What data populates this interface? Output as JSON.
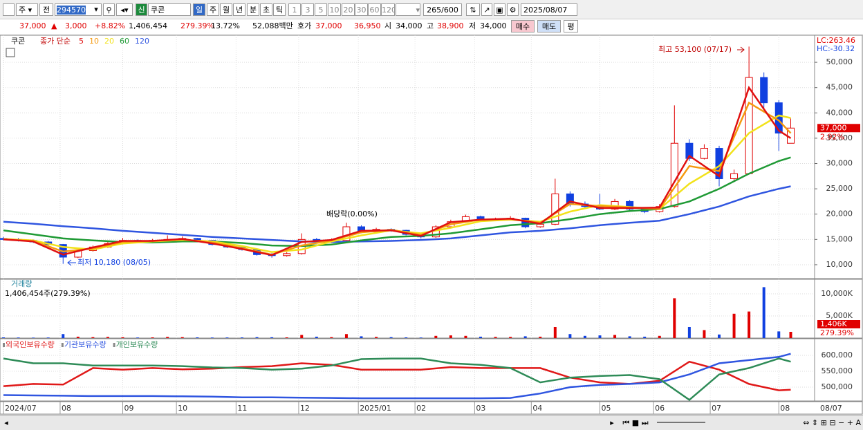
{
  "toolbar": {
    "market": "주",
    "prev": "전",
    "code": "294570",
    "flag": "신",
    "name": "쿠콘",
    "periods": [
      "일",
      "주",
      "월",
      "년",
      "분",
      "초",
      "틱"
    ],
    "intervals": [
      "1",
      "3",
      "5",
      "10",
      "20",
      "30",
      "60",
      "120"
    ],
    "count": "265",
    "total": "/600",
    "date": "2025/08/07"
  },
  "quote": {
    "price": "37,000",
    "arrow": "▲",
    "change": "3,000",
    "change_pct": "+8.82%",
    "volume": "1,406,454",
    "volume_ratio": "279.39%",
    "turnover": "13.72%",
    "amount": "52,088백만",
    "ask_label": "호가",
    "ask": "37,000",
    "bid": "36,950",
    "open_label": "시",
    "open": "34,000",
    "high_label": "고",
    "high": "38,900",
    "low_label": "저",
    "low": "34,000",
    "buy": "매수",
    "sell": "매도",
    "avg": "평"
  },
  "price_chart": {
    "type": "candlestick",
    "legend_name": "쿠콘",
    "legend_label": "종가 단순",
    "xlim": [
      0,
      272
    ],
    "xticks": [
      {
        "value": 0,
        "label": "2024/07"
      },
      {
        "value": 19,
        "label": "08"
      },
      {
        "value": 40,
        "label": "09"
      },
      {
        "value": 58,
        "label": "10"
      },
      {
        "value": 78,
        "label": "11"
      },
      {
        "value": 99,
        "label": "12"
      },
      {
        "value": 119,
        "label": "2025/01"
      },
      {
        "value": 138,
        "label": "02"
      },
      {
        "value": 158,
        "label": "03"
      },
      {
        "value": 177,
        "label": "04"
      },
      {
        "value": 200,
        "label": "05"
      },
      {
        "value": 218,
        "label": "06"
      },
      {
        "value": 237,
        "label": "07"
      },
      {
        "value": 260,
        "label": "08"
      }
    ],
    "last_date": "08/07",
    "x": [
      0,
      5,
      10,
      15,
      20,
      25,
      30,
      35,
      40,
      45,
      50,
      55,
      60,
      65,
      70,
      75,
      80,
      85,
      90,
      95,
      100,
      105,
      110,
      115,
      120,
      125,
      130,
      135,
      140,
      145,
      150,
      155,
      160,
      165,
      170,
      175,
      180,
      185,
      190,
      195,
      200,
      205,
      210,
      215,
      220,
      225,
      230,
      235,
      240,
      245,
      250,
      255,
      260,
      264
    ],
    "candles": [
      [
        15200,
        15500,
        14800,
        15000
      ],
      [
        15000,
        15300,
        14600,
        14800
      ],
      [
        14800,
        15000,
        14300,
        14500
      ],
      [
        14500,
        14700,
        13800,
        14000
      ],
      [
        14000,
        14100,
        10180,
        11500
      ],
      [
        11500,
        13000,
        11300,
        12800
      ],
      [
        12800,
        13800,
        12600,
        13500
      ],
      [
        13500,
        14500,
        13300,
        14200
      ],
      [
        14200,
        15300,
        14000,
        14800
      ],
      [
        14800,
        15000,
        14300,
        14500
      ],
      [
        14500,
        15100,
        14300,
        14800
      ],
      [
        14800,
        15800,
        14600,
        15000
      ],
      [
        15000,
        15600,
        14800,
        15200
      ],
      [
        15200,
        15300,
        14600,
        14800
      ],
      [
        14800,
        14900,
        13800,
        14000
      ],
      [
        14000,
        14200,
        13300,
        13500
      ],
      [
        13500,
        13700,
        12800,
        13000
      ],
      [
        13000,
        13100,
        11800,
        12000
      ],
      [
        12000,
        12300,
        11400,
        11800
      ],
      [
        11800,
        12500,
        11600,
        12200
      ],
      [
        12200,
        16200,
        12000,
        15000
      ],
      [
        15000,
        15300,
        14200,
        14500
      ],
      [
        14500,
        15200,
        14300,
        14800
      ],
      [
        14800,
        18300,
        14600,
        17500
      ],
      [
        17500,
        17800,
        16200,
        16500
      ],
      [
        16500,
        17300,
        16300,
        17000
      ],
      [
        17000,
        17200,
        16500,
        16800
      ],
      [
        16800,
        16900,
        15800,
        16000
      ],
      [
        16000,
        16100,
        15200,
        15500
      ],
      [
        15500,
        17800,
        15300,
        17500
      ],
      [
        17500,
        18900,
        17300,
        18500
      ],
      [
        18500,
        19900,
        18300,
        19500
      ],
      [
        19500,
        19700,
        18500,
        18800
      ],
      [
        18800,
        19300,
        18600,
        19000
      ],
      [
        19000,
        19600,
        18800,
        19200
      ],
      [
        19200,
        19300,
        17200,
        17500
      ],
      [
        17500,
        18300,
        17300,
        18000
      ],
      [
        18000,
        27000,
        17800,
        24000
      ],
      [
        24000,
        24500,
        21500,
        22000
      ],
      [
        22000,
        22500,
        21200,
        21500
      ],
      [
        21500,
        24000,
        20800,
        21000
      ],
      [
        21000,
        23000,
        20800,
        22500
      ],
      [
        22500,
        22800,
        20700,
        21000
      ],
      [
        21000,
        21300,
        20200,
        20500
      ],
      [
        20500,
        22000,
        20300,
        21500
      ],
      [
        21500,
        41500,
        21300,
        34000
      ],
      [
        34000,
        34800,
        30500,
        31000
      ],
      [
        31000,
        33800,
        30800,
        33000
      ],
      [
        33000,
        33500,
        25500,
        27000
      ],
      [
        27000,
        28800,
        26500,
        28000
      ],
      [
        28000,
        53100,
        27800,
        47000
      ],
      [
        47000,
        48000,
        41000,
        42000
      ],
      [
        42000,
        42500,
        32500,
        36000
      ],
      [
        34000,
        38900,
        34000,
        37000
      ]
    ],
    "ma_x": [
      0,
      10,
      20,
      30,
      40,
      50,
      60,
      70,
      80,
      90,
      100,
      110,
      120,
      130,
      140,
      150,
      160,
      170,
      180,
      190,
      200,
      210,
      220,
      230,
      240,
      250,
      260,
      264
    ],
    "series": [
      {
        "name": "5",
        "color": "#e01010",
        "values": [
          15000,
          14600,
          12000,
          13400,
          14700,
          14700,
          15100,
          14200,
          13100,
          11900,
          14500,
          14900,
          16700,
          16800,
          15700,
          18400,
          18900,
          19100,
          18100,
          22500,
          21200,
          21200,
          21300,
          31500,
          27500,
          45000,
          36500,
          35000
        ]
      },
      {
        "name": "10",
        "color": "#f59a10",
        "values": [
          15000,
          14700,
          12600,
          13200,
          14500,
          14700,
          15000,
          14400,
          13300,
          12000,
          13800,
          14800,
          16400,
          16900,
          15900,
          18000,
          18900,
          19000,
          18300,
          22000,
          21600,
          21300,
          21000,
          29500,
          28500,
          42000,
          38500,
          36000
        ]
      },
      {
        "name": "20",
        "color": "#f2e21a",
        "values": [
          15100,
          14800,
          13500,
          13000,
          14200,
          14600,
          14900,
          14600,
          13700,
          12500,
          13000,
          14600,
          15800,
          16800,
          16200,
          17300,
          18600,
          18900,
          18500,
          20500,
          21800,
          21400,
          21000,
          26000,
          29500,
          36000,
          39500,
          39000
        ]
      },
      {
        "name": "60",
        "color": "#1f9a35",
        "values": [
          16800,
          16000,
          15200,
          14800,
          14500,
          14400,
          14600,
          14600,
          14300,
          13800,
          13700,
          14000,
          14800,
          15500,
          15700,
          16200,
          17000,
          17800,
          18200,
          19000,
          20000,
          20600,
          21000,
          22500,
          25000,
          28000,
          30500,
          31200
        ]
      },
      {
        "name": "120",
        "color": "#2f55e0",
        "values": [
          18500,
          18100,
          17600,
          17200,
          16700,
          16300,
          15900,
          15500,
          15200,
          14900,
          14600,
          14500,
          14600,
          14700,
          14900,
          15200,
          15800,
          16400,
          16700,
          17200,
          17800,
          18300,
          18700,
          20000,
          21500,
          23500,
          25000,
          25500
        ]
      }
    ],
    "ylim": [
      7260,
      55340
    ],
    "yticks": [
      {
        "value": 10000,
        "label": "10,000"
      },
      {
        "value": 15000,
        "label": "15,000"
      },
      {
        "value": 20000,
        "label": "20,000"
      },
      {
        "value": 25000,
        "label": "25,000"
      },
      {
        "value": 30000,
        "label": "30,000"
      },
      {
        "value": 35000,
        "label": "35,000"
      },
      {
        "value": 40000,
        "label": "40,000"
      },
      {
        "value": 45000,
        "label": "45,000"
      },
      {
        "value": 50000,
        "label": "50,000"
      }
    ],
    "annotations": {
      "high": "최고 53,100 (07/17)",
      "low": "최저 10,180 (08/05)",
      "dividend": "배당락(0.00%)"
    },
    "lc": "LC:263.46",
    "hc": "HC:-30.32",
    "last_label": "37,000",
    "last_pct": "2.92%"
  },
  "volume_chart": {
    "type": "bar",
    "title": "거래량",
    "subtitle": "1,406,454주(279.39%)",
    "values": [
      150,
      120,
      100,
      120,
      900,
      300,
      200,
      250,
      180,
      120,
      150,
      250,
      200,
      150,
      120,
      130,
      140,
      200,
      180,
      150,
      700,
      300,
      200,
      900,
      400,
      250,
      200,
      150,
      120,
      500,
      600,
      500,
      300,
      250,
      250,
      400,
      300,
      2500,
      900,
      500,
      600,
      700,
      400,
      300,
      500,
      9000,
      2500,
      1800,
      800,
      5500,
      6000,
      11500,
      1500,
      1406
    ],
    "ylim": [
      0,
      13280
    ],
    "yticks": [
      {
        "value": 5000,
        "label": "5,000K"
      },
      {
        "value": 10000,
        "label": "10,000K"
      }
    ],
    "last_label": "1,406K",
    "last_pct": "279.39%"
  },
  "holdings_chart": {
    "type": "line",
    "series": [
      {
        "name": "외국인보유수량",
        "color": "#e01818",
        "values": [
          503000,
          510000,
          508000,
          560000,
          555000,
          560000,
          556000,
          558000,
          563000,
          566000,
          575000,
          570000,
          555000,
          555000,
          555000,
          563000,
          560000,
          560000,
          560000,
          530000,
          515000,
          510000,
          520000,
          580000,
          555000,
          510000,
          490000,
          492000
        ]
      },
      {
        "name": "기관보유수량",
        "color": "#2f55e0",
        "values": [
          475000,
          474000,
          473000,
          472000,
          472000,
          472000,
          471000,
          470000,
          468000,
          468000,
          467000,
          466000,
          465000,
          465000,
          465000,
          465000,
          465000,
          466000,
          480000,
          500000,
          507000,
          510000,
          515000,
          540000,
          575000,
          585000,
          595000,
          605000
        ]
      },
      {
        "name": "개인보유수량",
        "color": "#2e8b57",
        "values": [
          590000,
          575000,
          575000,
          568000,
          568000,
          568000,
          566000,
          562000,
          560000,
          555000,
          558000,
          568000,
          588000,
          590000,
          590000,
          575000,
          570000,
          560000,
          515000,
          530000,
          535000,
          538000,
          525000,
          460000,
          540000,
          560000,
          590000,
          580000
        ]
      }
    ],
    "ylim": [
      456500,
      652200
    ],
    "yticks": [
      {
        "value": 500000,
        "label": "500,000"
      },
      {
        "value": 550000,
        "label": "550,000"
      },
      {
        "value": 600000,
        "label": "600,000"
      }
    ]
  }
}
